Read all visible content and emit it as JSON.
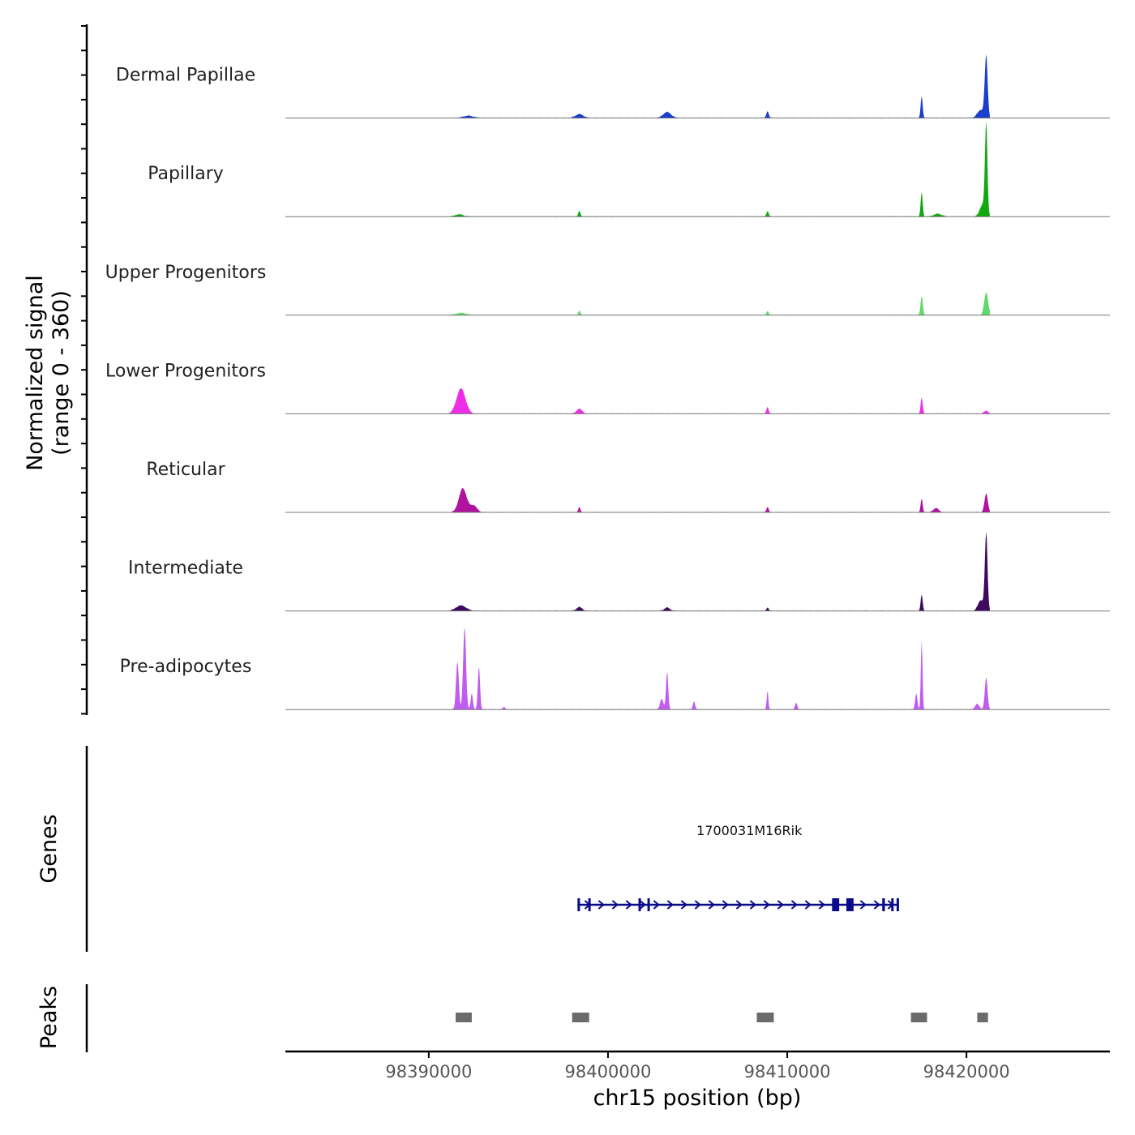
{
  "chart_data": {
    "type": "area",
    "title": "",
    "signal_axis": {
      "title_line1": "Normalized signal",
      "title_line2": "(range 0 - 360)",
      "ylim": [
        0,
        360
      ]
    },
    "x_axis": {
      "title": "chr15 position (bp)",
      "xlim": [
        98382000,
        98428000
      ],
      "ticks": [
        98390000,
        98400000,
        98410000,
        98420000
      ],
      "tick_labels": [
        "98390000",
        "98400000",
        "98410000",
        "98420000"
      ]
    },
    "tracks": [
      {
        "name": "Dermal Papillae",
        "color": "#1a3fcf",
        "peaks": [
          {
            "pos": 98392200,
            "value": 8,
            "width": 900
          },
          {
            "pos": 98398400,
            "value": 14,
            "width": 700
          },
          {
            "pos": 98403300,
            "value": 22,
            "width": 700
          },
          {
            "pos": 98408900,
            "value": 25,
            "width": 220
          },
          {
            "pos": 98417500,
            "value": 80,
            "width": 180
          },
          {
            "pos": 98421100,
            "value": 230,
            "width": 260
          },
          {
            "pos": 98420800,
            "value": 30,
            "width": 600
          }
        ]
      },
      {
        "name": "Papillary",
        "color": "#12a812",
        "peaks": [
          {
            "pos": 98391700,
            "value": 8,
            "width": 700
          },
          {
            "pos": 98398400,
            "value": 20,
            "width": 200
          },
          {
            "pos": 98408900,
            "value": 20,
            "width": 200
          },
          {
            "pos": 98417500,
            "value": 90,
            "width": 180
          },
          {
            "pos": 98418400,
            "value": 10,
            "width": 700
          },
          {
            "pos": 98421100,
            "value": 340,
            "width": 220
          },
          {
            "pos": 98420900,
            "value": 45,
            "width": 500
          }
        ]
      },
      {
        "name": "Upper Progenitors",
        "color": "#5ed96a",
        "peaks": [
          {
            "pos": 98391800,
            "value": 8,
            "width": 900
          },
          {
            "pos": 98398400,
            "value": 15,
            "width": 200
          },
          {
            "pos": 98408900,
            "value": 15,
            "width": 200
          },
          {
            "pos": 98417500,
            "value": 70,
            "width": 200
          },
          {
            "pos": 98421100,
            "value": 85,
            "width": 350
          }
        ]
      },
      {
        "name": "Lower Progenitors",
        "color": "#ee2ee6",
        "peaks": [
          {
            "pos": 98391800,
            "value": 95,
            "width": 800
          },
          {
            "pos": 98398400,
            "value": 18,
            "width": 500
          },
          {
            "pos": 98408900,
            "value": 25,
            "width": 200
          },
          {
            "pos": 98417500,
            "value": 60,
            "width": 180
          },
          {
            "pos": 98421100,
            "value": 10,
            "width": 400
          }
        ]
      },
      {
        "name": "Reticular",
        "color": "#b0139e",
        "peaks": [
          {
            "pos": 98391900,
            "value": 90,
            "width": 700
          },
          {
            "pos": 98392500,
            "value": 25,
            "width": 600
          },
          {
            "pos": 98398400,
            "value": 18,
            "width": 200
          },
          {
            "pos": 98408900,
            "value": 20,
            "width": 200
          },
          {
            "pos": 98417500,
            "value": 50,
            "width": 180
          },
          {
            "pos": 98418300,
            "value": 15,
            "width": 500
          },
          {
            "pos": 98421100,
            "value": 70,
            "width": 300
          }
        ]
      },
      {
        "name": "Intermediate",
        "color": "#3e0a5e",
        "peaks": [
          {
            "pos": 98391800,
            "value": 20,
            "width": 900
          },
          {
            "pos": 98398400,
            "value": 14,
            "width": 500
          },
          {
            "pos": 98403300,
            "value": 12,
            "width": 500
          },
          {
            "pos": 98408900,
            "value": 12,
            "width": 200
          },
          {
            "pos": 98417500,
            "value": 60,
            "width": 180
          },
          {
            "pos": 98421100,
            "value": 290,
            "width": 240
          },
          {
            "pos": 98420800,
            "value": 40,
            "width": 500
          }
        ]
      },
      {
        "name": "Pre-adipocytes",
        "color": "#c05cf0",
        "peaks": [
          {
            "pos": 98391600,
            "value": 180,
            "width": 250
          },
          {
            "pos": 98392000,
            "value": 310,
            "width": 260
          },
          {
            "pos": 98392400,
            "value": 60,
            "width": 200
          },
          {
            "pos": 98392800,
            "value": 160,
            "width": 200
          },
          {
            "pos": 98394200,
            "value": 10,
            "width": 200
          },
          {
            "pos": 98403000,
            "value": 40,
            "width": 300
          },
          {
            "pos": 98403300,
            "value": 140,
            "width": 200
          },
          {
            "pos": 98404800,
            "value": 30,
            "width": 200
          },
          {
            "pos": 98408900,
            "value": 70,
            "width": 150
          },
          {
            "pos": 98410500,
            "value": 25,
            "width": 200
          },
          {
            "pos": 98417500,
            "value": 260,
            "width": 150
          },
          {
            "pos": 98417200,
            "value": 60,
            "width": 200
          },
          {
            "pos": 98421100,
            "value": 120,
            "width": 250
          },
          {
            "pos": 98420600,
            "value": 20,
            "width": 400
          }
        ]
      }
    ],
    "genes": {
      "panel_title": "Genes",
      "items": [
        {
          "name": "1700031M16Rik",
          "strand": "+",
          "start": 98398300,
          "end": 98416200,
          "color": "#0a0a8c",
          "exons": [
            [
              98398300,
              98398400
            ],
            [
              98398900,
              98399000
            ],
            [
              98401700,
              98401800
            ],
            [
              98402200,
              98402250
            ],
            [
              98412500,
              98412900
            ],
            [
              98413300,
              98413700
            ],
            [
              98415300,
              98415450
            ],
            [
              98415800,
              98415900
            ],
            [
              98416100,
              98416200
            ]
          ]
        }
      ]
    },
    "peaks_track": {
      "panel_title": "Peaks",
      "color": "#6b6b6b",
      "regions": [
        [
          98391500,
          98392400
        ],
        [
          98398000,
          98398950
        ],
        [
          98408300,
          98409250
        ],
        [
          98416900,
          98417800
        ],
        [
          98420600,
          98421200
        ]
      ]
    }
  }
}
